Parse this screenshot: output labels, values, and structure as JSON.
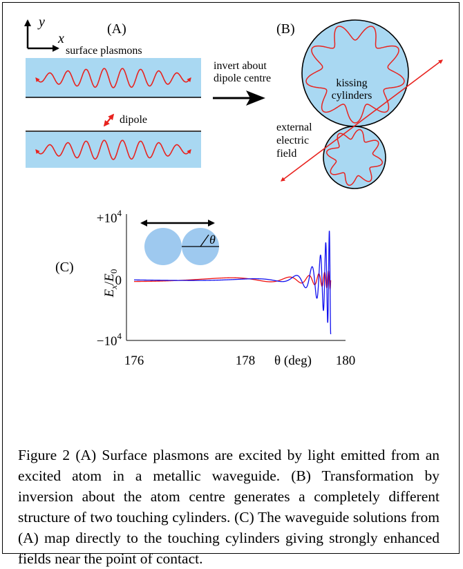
{
  "panel_a": {
    "label": "(A)",
    "axis_y": "y",
    "axis_x": "x",
    "surface_plasmons_label": "surface plasmons",
    "dipole_label": "dipole"
  },
  "arrow_label": {
    "line1": "invert about",
    "line2": "dipole centre"
  },
  "panel_b": {
    "label": "(B)",
    "kissing_line1": "kissing",
    "kissing_line2": "cylinders",
    "field_line1": "external",
    "field_line2": "electric",
    "field_line3": "field"
  },
  "panel_c": {
    "label": "(C)",
    "theta_symbol": "θ"
  },
  "chart_data": {
    "type": "line",
    "title": "",
    "xlabel": "θ (deg)",
    "ylabel": "E_x / E_0",
    "ylabel_main": "E",
    "ylabel_sub_x": "x",
    "ylabel_slash": "/",
    "ylabel_denom": "E",
    "ylabel_sub_0": "0",
    "xlim": [
      176,
      180
    ],
    "ylim": [
      -10000,
      10000
    ],
    "x_ticks": [
      {
        "value": 176,
        "label": "176"
      },
      {
        "value": 178,
        "label": "178"
      },
      {
        "value": 180,
        "label": "180"
      }
    ],
    "y_ticks": [
      {
        "value": 10000,
        "label": "+10",
        "exp": "4"
      },
      {
        "value": 0,
        "label": "0",
        "exp": ""
      },
      {
        "value": -10000,
        "label": "−10",
        "exp": "4"
      }
    ],
    "series": [
      {
        "color": "#1010ee",
        "description_points": [
          [
            176.0,
            150
          ],
          [
            177.0,
            0
          ],
          [
            178.0,
            -450
          ],
          [
            178.6,
            800
          ],
          [
            178.95,
            -1400
          ],
          [
            179.3,
            3000
          ],
          [
            179.55,
            -6000
          ],
          [
            179.75,
            9800
          ]
        ]
      },
      {
        "color": "#ee1010",
        "description_points": [
          [
            176.0,
            300
          ],
          [
            177.0,
            0
          ],
          [
            178.2,
            -400
          ],
          [
            178.8,
            600
          ],
          [
            179.2,
            -900
          ],
          [
            179.5,
            1200
          ],
          [
            179.75,
            1500
          ]
        ]
      }
    ]
  },
  "caption": "Figure 2 (A) Surface plasmons are excited by light emitted from an excited atom in a metallic waveguide. (B) Transformation by inversion about the atom centre generates a completely different structure of two touching cylinders. (C) The waveguide solutions from (A) map directly to the touching cylinders giving strongly enhanced fields near the point of contact."
}
